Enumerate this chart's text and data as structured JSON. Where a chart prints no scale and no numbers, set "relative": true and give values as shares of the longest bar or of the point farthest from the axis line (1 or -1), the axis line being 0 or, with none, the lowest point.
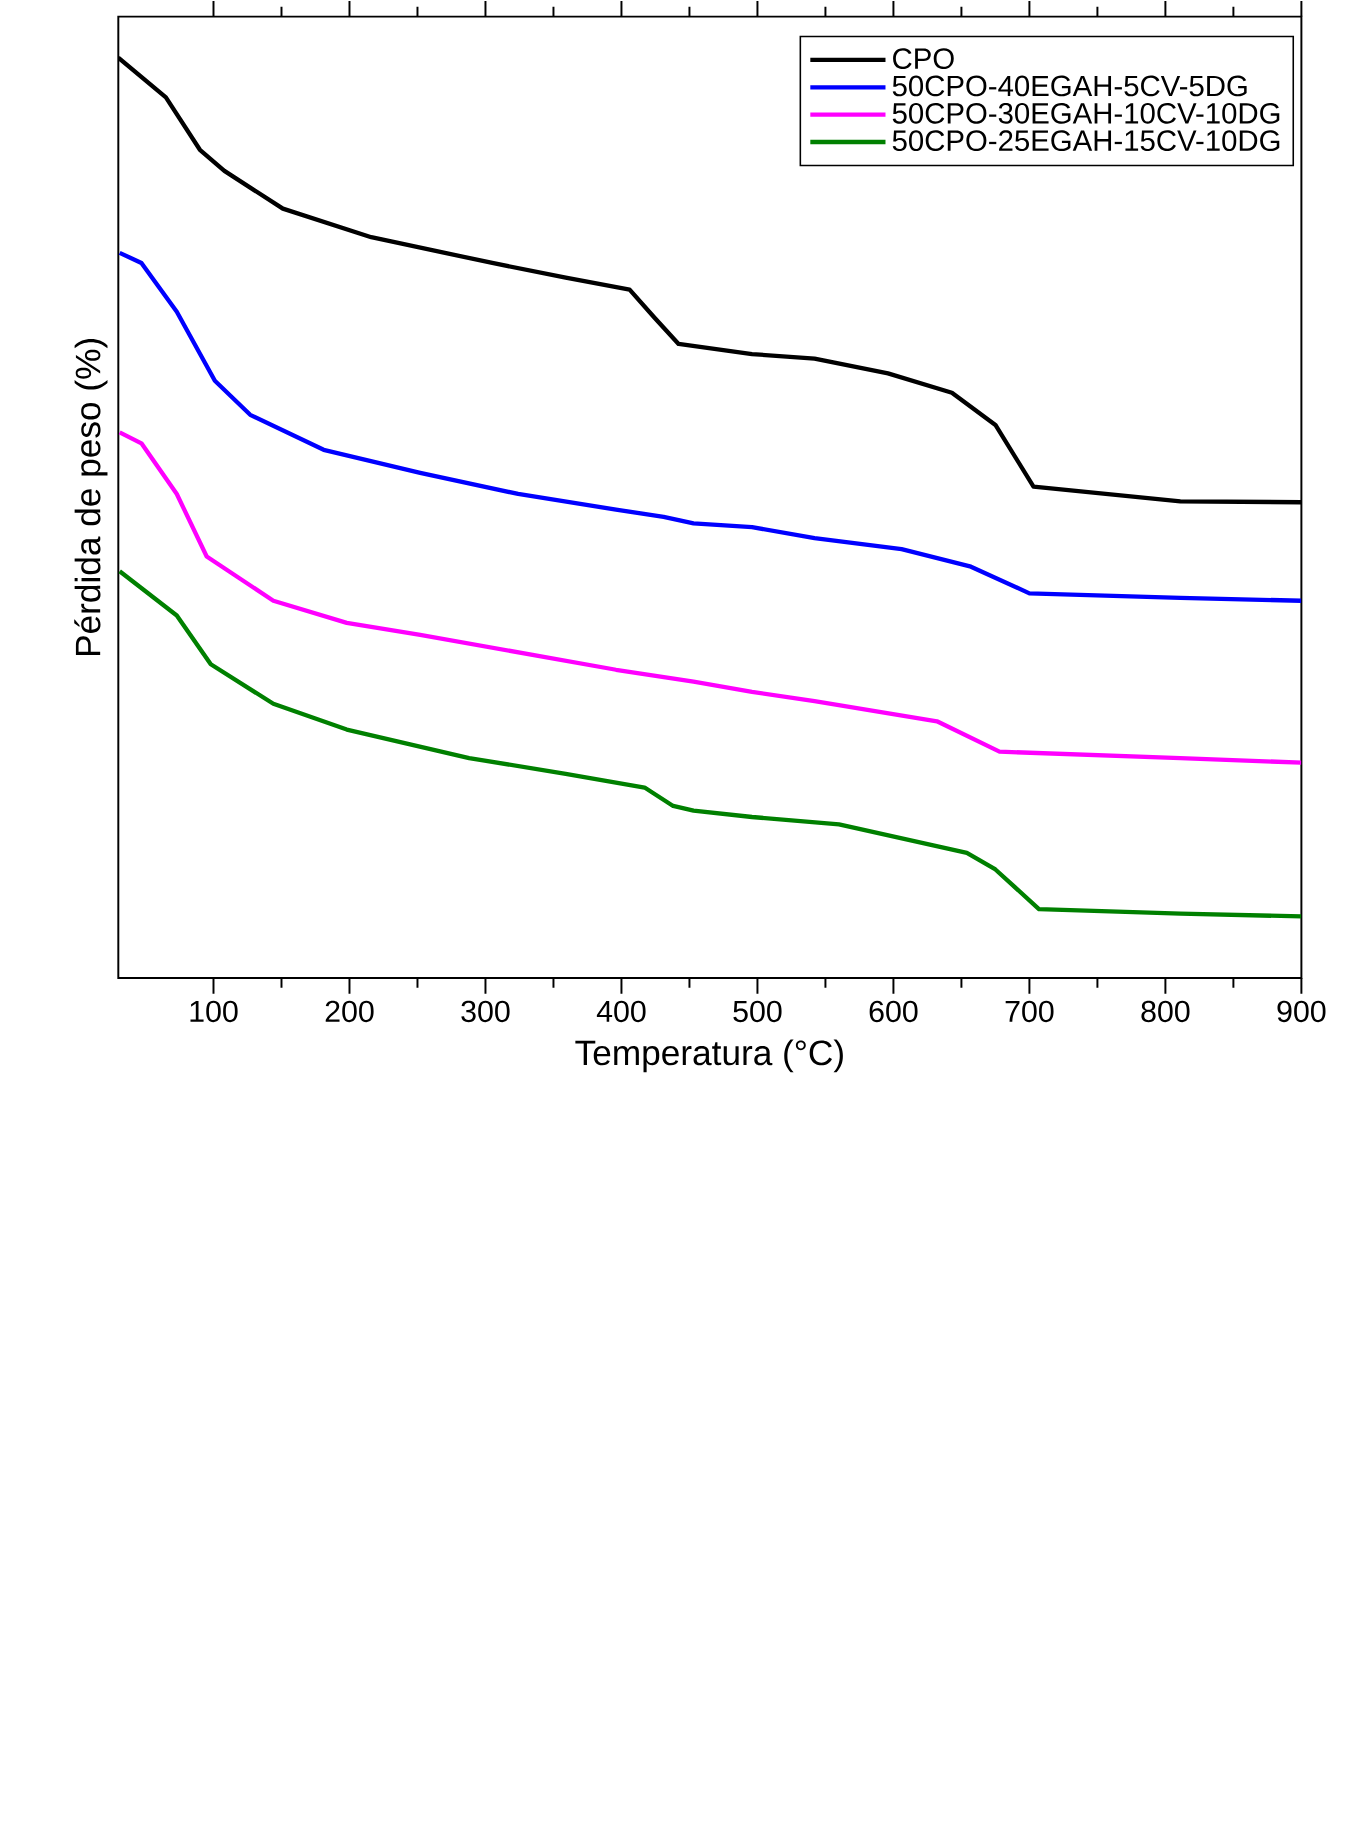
{
  "chart_data": {
    "type": "line",
    "xlabel": "Temperatura (°C)",
    "ylabel": "Pérdida de peso (%)",
    "xlim": [
      30,
      900
    ],
    "xticks": [
      100,
      200,
      300,
      400,
      500,
      600,
      700,
      800,
      900
    ],
    "relative": true,
    "legend": "top right",
    "series": [
      {
        "name": "CPO",
        "color": "#000000",
        "x": [
          30,
          65,
          90,
          108,
          151,
          216,
          305,
          359,
          406,
          424,
          442,
          496,
          542,
          596,
          643,
          675,
          703,
          811,
          900
        ],
        "values": [
          1,
          0.957,
          0.9,
          0.877,
          0.836,
          0.805,
          0.777,
          0.761,
          0.748,
          0.718,
          0.689,
          0.678,
          0.673,
          0.657,
          0.636,
          0.601,
          0.534,
          0.518,
          0.517
        ]
      },
      {
        "name": "50CPO-40EGAH-5CV-5DG",
        "color": "#0000ff",
        "x": [
          31,
          47,
          73,
          101,
          127,
          181,
          252,
          324,
          396,
          431,
          453,
          496,
          542,
          606,
          657,
          700,
          811,
          900
        ],
        "values": [
          0.788,
          0.777,
          0.724,
          0.649,
          0.612,
          0.574,
          0.549,
          0.526,
          0.509,
          0.501,
          0.494,
          0.49,
          0.478,
          0.466,
          0.447,
          0.418,
          0.413,
          0.41
        ]
      },
      {
        "name": "50CPO-30EGAH-10CV-10DG",
        "color": "#ff00ff",
        "x": [
          31,
          47,
          73,
          95,
          144,
          198,
          252,
          324,
          396,
          453,
          496,
          542,
          632,
          678,
          811,
          900
        ],
        "values": [
          0.593,
          0.581,
          0.526,
          0.458,
          0.41,
          0.386,
          0.373,
          0.354,
          0.335,
          0.322,
          0.311,
          0.301,
          0.279,
          0.246,
          0.239,
          0.234
        ]
      },
      {
        "name": "50CPO-25EGAH-15CV-10DG",
        "color": "#008000",
        "x": [
          31,
          73,
          98,
          144,
          198,
          288,
          359,
          417,
          438,
          453,
          496,
          560,
          654,
          675,
          707,
          811,
          900
        ],
        "values": [
          0.442,
          0.394,
          0.341,
          0.298,
          0.27,
          0.239,
          0.222,
          0.207,
          0.187,
          0.182,
          0.175,
          0.167,
          0.136,
          0.118,
          0.075,
          0.07,
          0.067
        ]
      }
    ]
  }
}
